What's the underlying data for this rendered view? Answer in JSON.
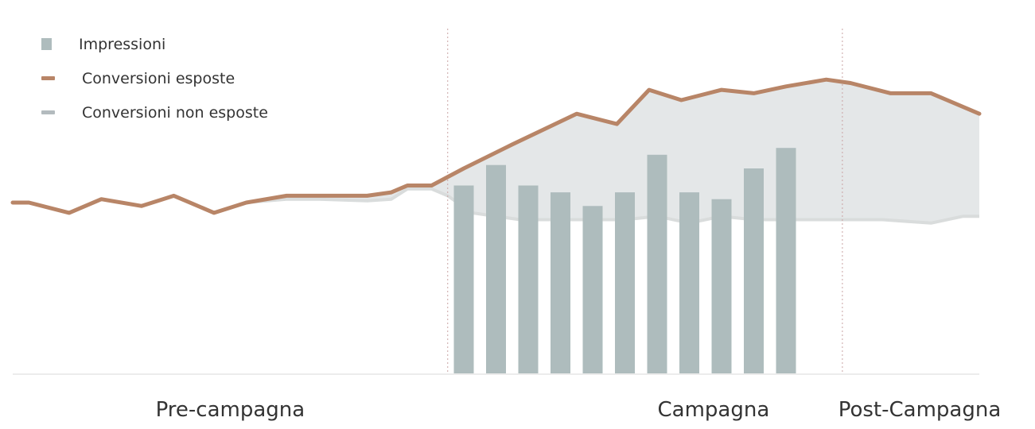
{
  "chart_data": {
    "type": "line",
    "title": "",
    "xlabel": "",
    "ylabel": "",
    "grid": false,
    "legend_position": "top-left",
    "x_range": [
      0,
      60
    ],
    "y_range": [
      0,
      100
    ],
    "phases": [
      {
        "label": "Pre-campagna",
        "start": 0,
        "end": 27
      },
      {
        "label": "Campagna",
        "start": 27,
        "end": 51.5
      },
      {
        "label": "Post-Campagna",
        "start": 51.5,
        "end": 60
      }
    ],
    "series": [
      {
        "name": "Impressioni",
        "kind": "bar",
        "color": "#aebcbd",
        "x": [
          28,
          30,
          32,
          34,
          36,
          38,
          40,
          42,
          44,
          46,
          48
        ],
        "values": [
          55,
          61,
          55,
          53,
          49,
          53,
          64,
          53,
          51,
          60,
          66
        ]
      },
      {
        "name": "Conversioni esposte",
        "kind": "line",
        "color": "#b88567",
        "x": [
          0,
          1,
          3.5,
          5.5,
          8,
          10,
          12.5,
          14.5,
          17,
          19,
          22,
          23.5,
          24.5,
          26,
          28,
          31,
          35,
          37.5,
          39.5,
          41.5,
          44,
          46,
          48,
          50.5,
          52,
          54.5,
          57,
          60
        ],
        "values": [
          50,
          50,
          47,
          51,
          49,
          52,
          47,
          50,
          52,
          52,
          52,
          53,
          55,
          55,
          60,
          67,
          76,
          73,
          83,
          80,
          83,
          82,
          84,
          86,
          85,
          82,
          82,
          76
        ]
      },
      {
        "name": "Conversioni non esposte",
        "kind": "area",
        "color": "#d9dcdc",
        "x": [
          0,
          1,
          3.5,
          5.5,
          8,
          10,
          12.5,
          14.5,
          17,
          19,
          22,
          23.5,
          24.5,
          26,
          27,
          28.5,
          31.5,
          35,
          38,
          40,
          42,
          44,
          46,
          48,
          50,
          52,
          54,
          57,
          59,
          60
        ],
        "values": [
          50,
          50,
          47,
          51,
          49,
          52,
          47,
          50,
          51,
          51,
          50.5,
          51,
          54,
          54,
          52,
          47,
          45,
          45,
          45,
          46,
          44,
          46,
          45,
          45,
          45,
          45,
          45,
          44,
          46,
          46
        ]
      }
    ]
  }
}
